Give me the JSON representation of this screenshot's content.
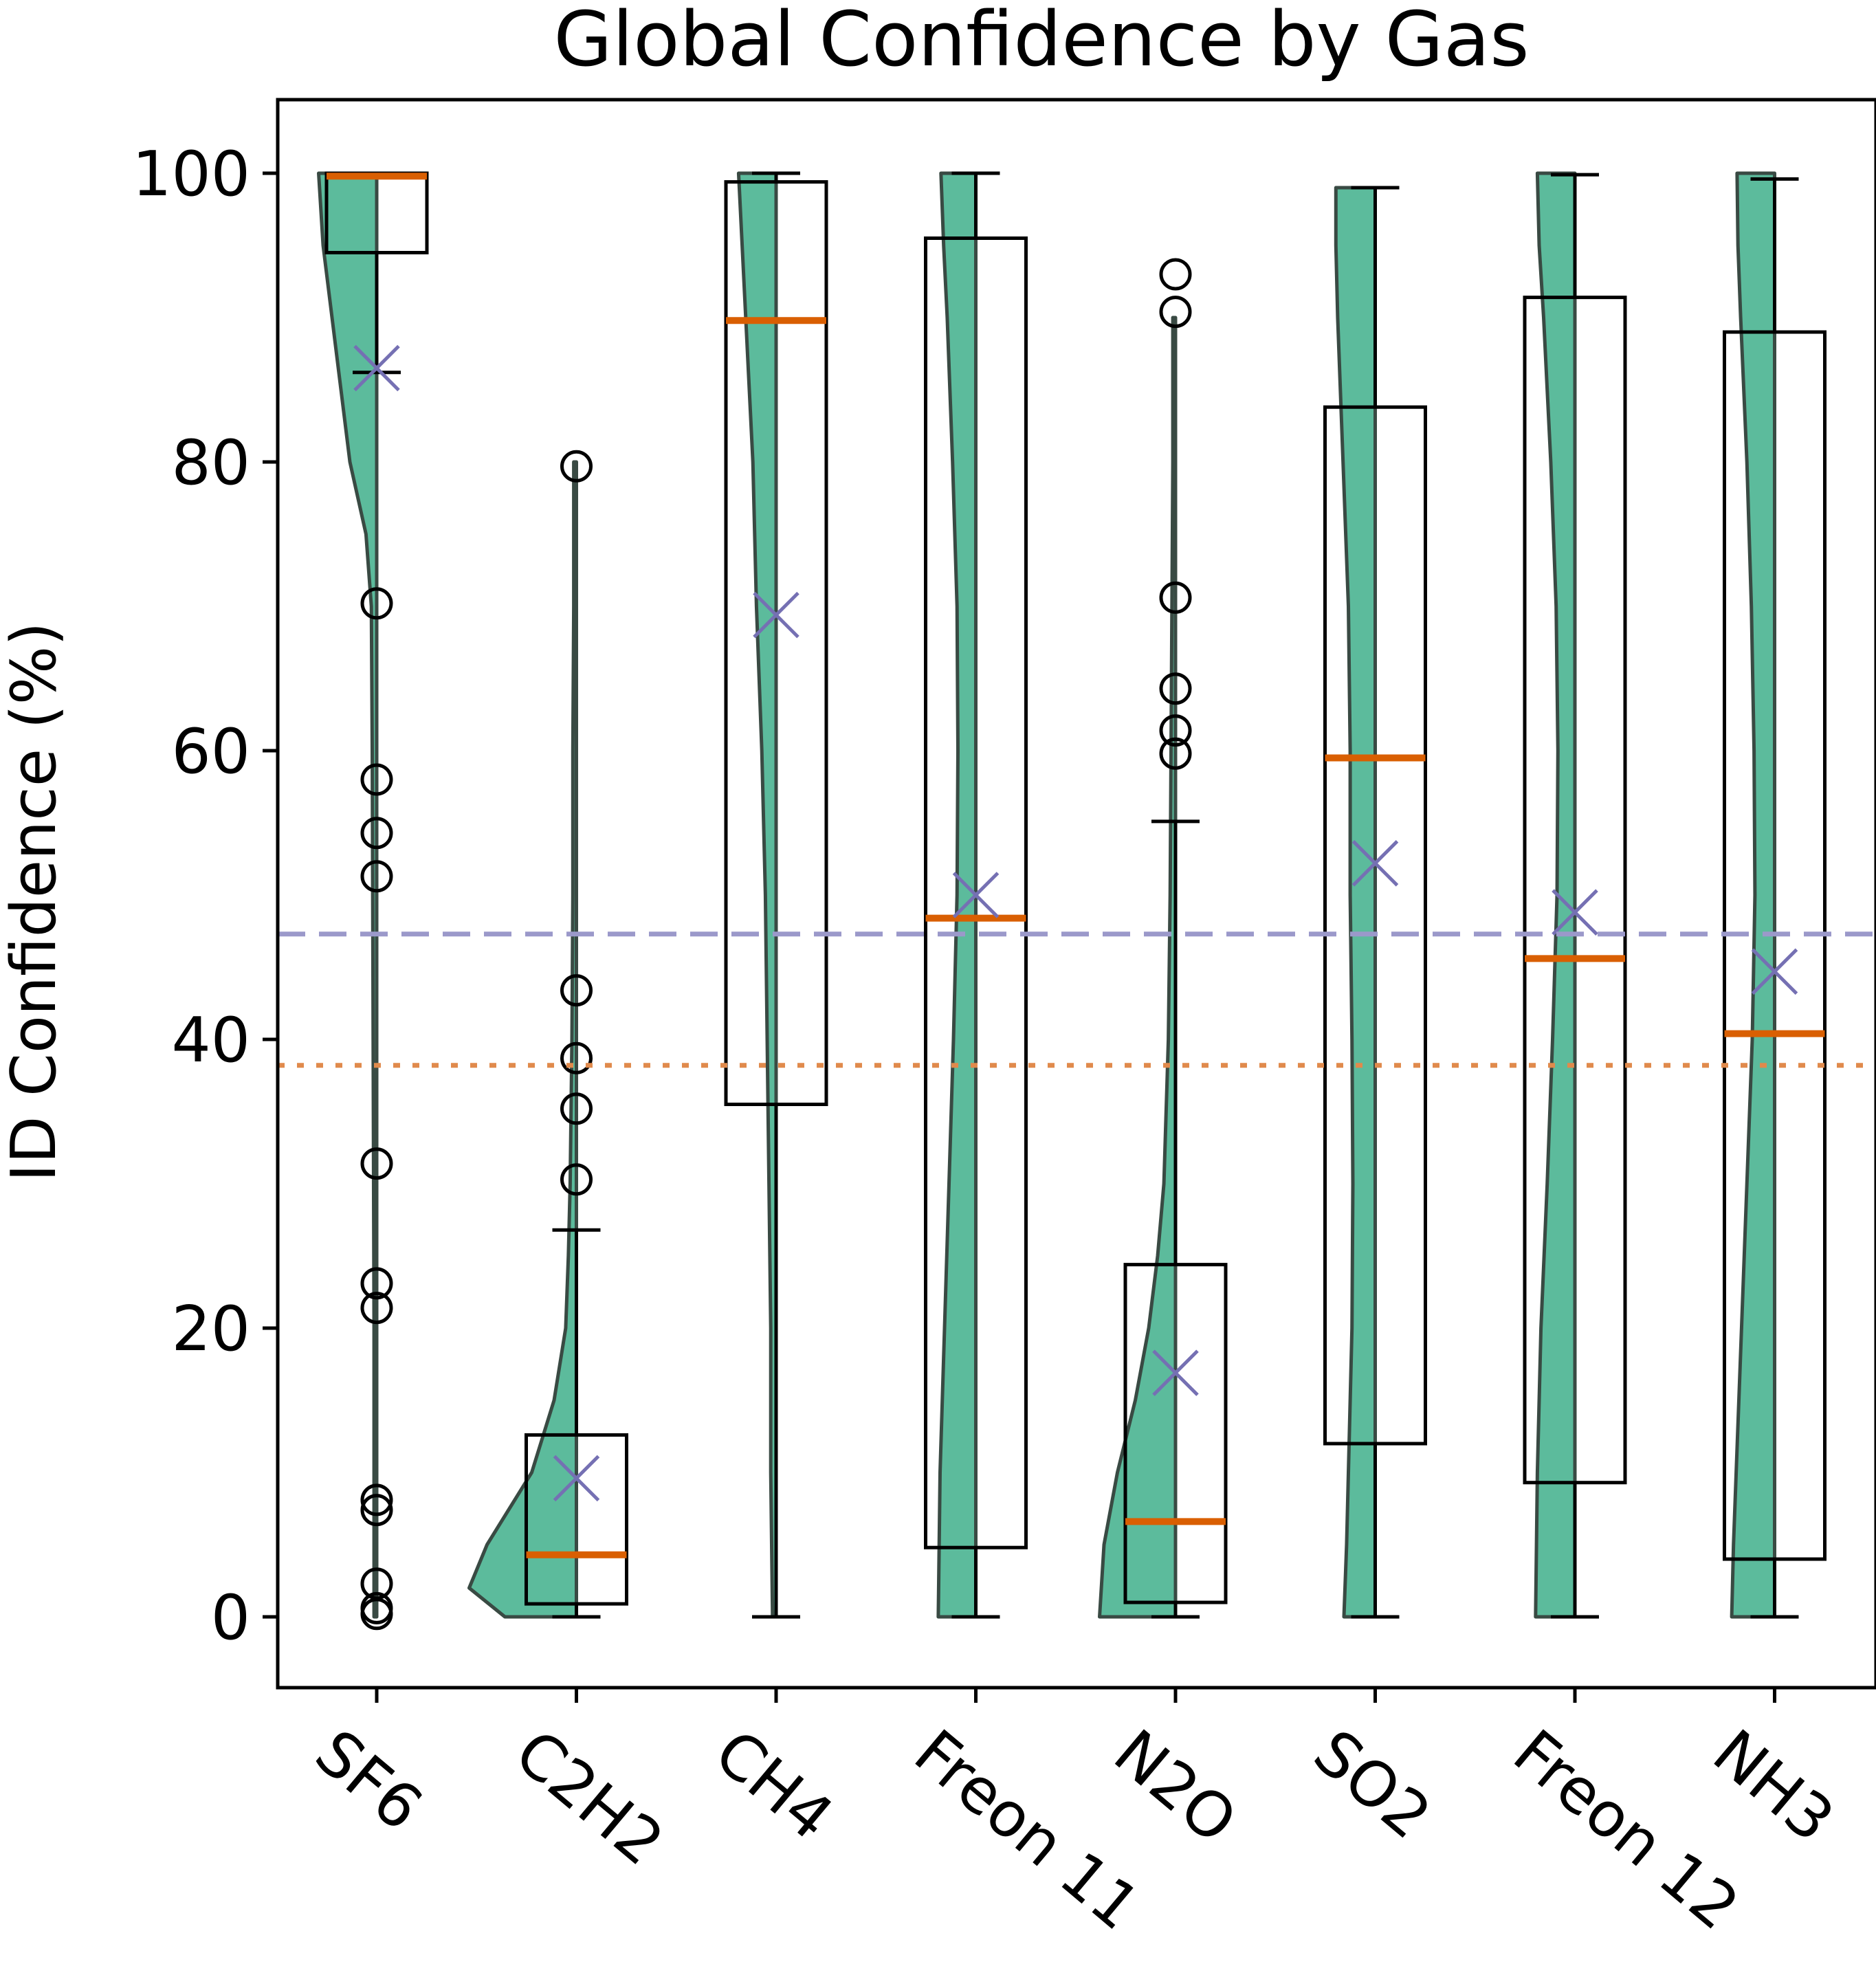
{
  "chart_data": {
    "type": "box+violin",
    "title": "Global Confidence by Gas",
    "xlabel": "",
    "ylabel": "ID Confidence (%)",
    "ylim": [
      -5,
      105
    ],
    "yticks": [
      0,
      20,
      40,
      60,
      80,
      100
    ],
    "ytick_labels": [
      "0",
      "20",
      "40",
      "60",
      "80",
      "100"
    ],
    "categories": [
      "SF6",
      "C2H2",
      "CH4",
      "Freon 11",
      "N2O",
      "SO2",
      "Freon 12",
      "NH3"
    ],
    "boxes": [
      {
        "q1": 94.5,
        "median": 99.8,
        "q3": 100,
        "whisker_low": 86.2,
        "whisker_high": 100,
        "mean": 86.5,
        "outliers": [
          70.2,
          58.0,
          54.3,
          51.3,
          31.4,
          23.1,
          21.4,
          8.1,
          7.4,
          2.3,
          0.6,
          0.2
        ]
      },
      {
        "q1": 0.9,
        "median": 4.3,
        "q3": 12.6,
        "whisker_low": 0,
        "whisker_high": 26.8,
        "mean": 9.6,
        "outliers": [
          79.7,
          43.4,
          38.7,
          35.2,
          30.3
        ]
      },
      {
        "q1": 35.5,
        "median": 89.8,
        "q3": 99.4,
        "whisker_low": 0,
        "whisker_high": 100,
        "mean": 69.4,
        "outliers": []
      },
      {
        "q1": 4.8,
        "median": 48.4,
        "q3": 95.5,
        "whisker_low": 0,
        "whisker_high": 100,
        "mean": 50.0,
        "outliers": []
      },
      {
        "q1": 1.0,
        "median": 6.6,
        "q3": 24.4,
        "whisker_low": 0,
        "whisker_high": 55.1,
        "mean": 16.9,
        "outliers": [
          93.0,
          90.4,
          70.6,
          64.3,
          61.4,
          59.8
        ]
      },
      {
        "q1": 12.0,
        "median": 59.5,
        "q3": 83.8,
        "whisker_low": 0,
        "whisker_high": 99.0,
        "mean": 52.2,
        "outliers": []
      },
      {
        "q1": 9.3,
        "median": 45.6,
        "q3": 91.4,
        "whisker_low": 0,
        "whisker_high": 99.9,
        "mean": 48.8,
        "outliers": []
      },
      {
        "q1": 4.0,
        "median": 40.4,
        "q3": 89.0,
        "whisker_low": 0,
        "whisker_high": 99.6,
        "mean": 44.7,
        "outliers": []
      }
    ],
    "violins": [
      {
        "y": [
          0,
          5,
          10,
          20,
          40,
          60,
          70,
          75,
          80,
          85,
          90,
          95,
          100
        ],
        "w": [
          0.003,
          0.003,
          0.003,
          0.003,
          0.004,
          0.005,
          0.006,
          0.012,
          0.03,
          0.04,
          0.05,
          0.06,
          0.065
        ]
      },
      {
        "y": [
          0,
          2,
          5,
          10,
          15,
          20,
          25,
          30,
          40,
          50,
          60,
          70,
          80
        ],
        "w": [
          0.08,
          0.12,
          0.1,
          0.05,
          0.025,
          0.012,
          0.009,
          0.007,
          0.005,
          0.004,
          0.004,
          0.003,
          0.003
        ]
      },
      {
        "y": [
          0,
          10,
          20,
          30,
          40,
          50,
          60,
          70,
          80,
          85,
          90,
          95,
          100
        ],
        "w": [
          0.004,
          0.006,
          0.006,
          0.008,
          0.01,
          0.012,
          0.016,
          0.022,
          0.026,
          0.03,
          0.034,
          0.038,
          0.042
        ]
      },
      {
        "y": [
          0,
          5,
          10,
          20,
          30,
          40,
          50,
          60,
          70,
          80,
          90,
          95,
          100
        ],
        "w": [
          0.042,
          0.041,
          0.04,
          0.035,
          0.03,
          0.025,
          0.021,
          0.02,
          0.021,
          0.026,
          0.032,
          0.036,
          0.039
        ]
      },
      {
        "y": [
          0,
          5,
          10,
          15,
          20,
          25,
          30,
          40,
          50,
          60,
          70,
          80,
          90
        ],
        "w": [
          0.085,
          0.08,
          0.065,
          0.045,
          0.03,
          0.02,
          0.013,
          0.008,
          0.006,
          0.005,
          0.004,
          0.003,
          0.003
        ]
      },
      {
        "y": [
          0,
          5,
          10,
          20,
          30,
          40,
          50,
          60,
          70,
          80,
          90,
          95,
          99
        ],
        "w": [
          0.035,
          0.032,
          0.03,
          0.026,
          0.025,
          0.026,
          0.028,
          0.028,
          0.03,
          0.036,
          0.042,
          0.044,
          0.044
        ]
      },
      {
        "y": [
          0,
          5,
          10,
          20,
          30,
          40,
          50,
          60,
          70,
          80,
          90,
          95,
          100
        ],
        "w": [
          0.044,
          0.043,
          0.042,
          0.038,
          0.031,
          0.025,
          0.02,
          0.019,
          0.021,
          0.027,
          0.035,
          0.04,
          0.042
        ]
      },
      {
        "y": [
          0,
          5,
          10,
          20,
          30,
          40,
          50,
          60,
          70,
          80,
          90,
          95,
          100
        ],
        "w": [
          0.048,
          0.046,
          0.043,
          0.037,
          0.031,
          0.025,
          0.022,
          0.023,
          0.026,
          0.031,
          0.038,
          0.041,
          0.042
        ]
      }
    ],
    "reference_lines": [
      {
        "name": "overall-mean",
        "y": 47.3,
        "style": "dashed",
        "color": "#9b99ca"
      },
      {
        "name": "overall-median",
        "y": 38.2,
        "style": "dotted",
        "color": "#e08a4c"
      }
    ],
    "colors": {
      "violin_fill": "#5cbb9c",
      "violin_edge": "#394a43",
      "median": "#d95f02",
      "mean_marker": "#7570b3",
      "box": "#000000"
    }
  }
}
